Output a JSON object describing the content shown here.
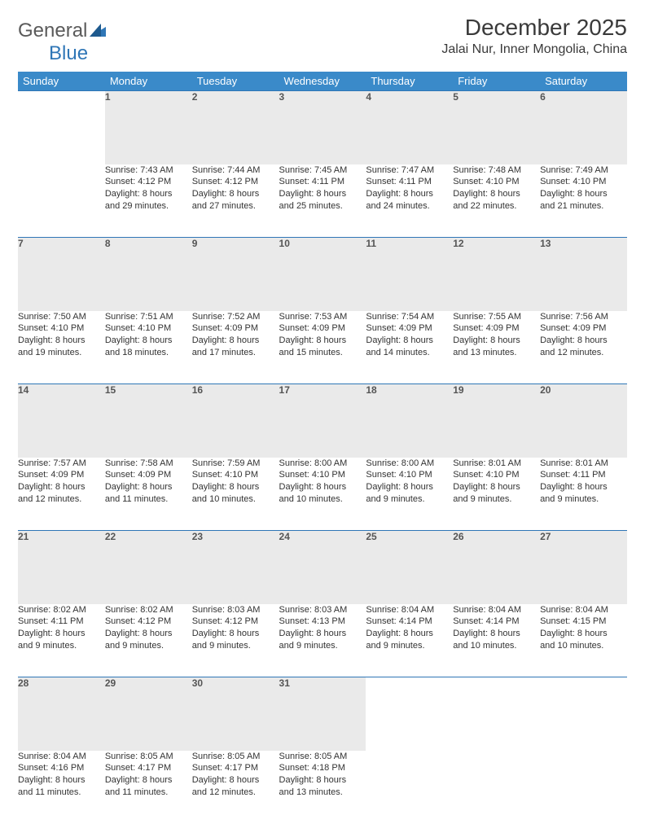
{
  "logo": {
    "text_gray": "General",
    "text_blue": "Blue"
  },
  "title": "December 2025",
  "location": "Jalai Nur, Inner Mongolia, China",
  "colors": {
    "header_bg": "#3a8ac9",
    "header_text": "#ffffff",
    "daynum_bg": "#eaeaea",
    "rule": "#2f76b6",
    "body_text": "#333333",
    "logo_gray": "#5a5a5a",
    "logo_blue": "#2f76b6"
  },
  "weekdays": [
    "Sunday",
    "Monday",
    "Tuesday",
    "Wednesday",
    "Thursday",
    "Friday",
    "Saturday"
  ],
  "weeks": [
    [
      null,
      {
        "n": "1",
        "sr": "Sunrise: 7:43 AM",
        "ss": "Sunset: 4:12 PM",
        "d1": "Daylight: 8 hours",
        "d2": "and 29 minutes."
      },
      {
        "n": "2",
        "sr": "Sunrise: 7:44 AM",
        "ss": "Sunset: 4:12 PM",
        "d1": "Daylight: 8 hours",
        "d2": "and 27 minutes."
      },
      {
        "n": "3",
        "sr": "Sunrise: 7:45 AM",
        "ss": "Sunset: 4:11 PM",
        "d1": "Daylight: 8 hours",
        "d2": "and 25 minutes."
      },
      {
        "n": "4",
        "sr": "Sunrise: 7:47 AM",
        "ss": "Sunset: 4:11 PM",
        "d1": "Daylight: 8 hours",
        "d2": "and 24 minutes."
      },
      {
        "n": "5",
        "sr": "Sunrise: 7:48 AM",
        "ss": "Sunset: 4:10 PM",
        "d1": "Daylight: 8 hours",
        "d2": "and 22 minutes."
      },
      {
        "n": "6",
        "sr": "Sunrise: 7:49 AM",
        "ss": "Sunset: 4:10 PM",
        "d1": "Daylight: 8 hours",
        "d2": "and 21 minutes."
      }
    ],
    [
      {
        "n": "7",
        "sr": "Sunrise: 7:50 AM",
        "ss": "Sunset: 4:10 PM",
        "d1": "Daylight: 8 hours",
        "d2": "and 19 minutes."
      },
      {
        "n": "8",
        "sr": "Sunrise: 7:51 AM",
        "ss": "Sunset: 4:10 PM",
        "d1": "Daylight: 8 hours",
        "d2": "and 18 minutes."
      },
      {
        "n": "9",
        "sr": "Sunrise: 7:52 AM",
        "ss": "Sunset: 4:09 PM",
        "d1": "Daylight: 8 hours",
        "d2": "and 17 minutes."
      },
      {
        "n": "10",
        "sr": "Sunrise: 7:53 AM",
        "ss": "Sunset: 4:09 PM",
        "d1": "Daylight: 8 hours",
        "d2": "and 15 minutes."
      },
      {
        "n": "11",
        "sr": "Sunrise: 7:54 AM",
        "ss": "Sunset: 4:09 PM",
        "d1": "Daylight: 8 hours",
        "d2": "and 14 minutes."
      },
      {
        "n": "12",
        "sr": "Sunrise: 7:55 AM",
        "ss": "Sunset: 4:09 PM",
        "d1": "Daylight: 8 hours",
        "d2": "and 13 minutes."
      },
      {
        "n": "13",
        "sr": "Sunrise: 7:56 AM",
        "ss": "Sunset: 4:09 PM",
        "d1": "Daylight: 8 hours",
        "d2": "and 12 minutes."
      }
    ],
    [
      {
        "n": "14",
        "sr": "Sunrise: 7:57 AM",
        "ss": "Sunset: 4:09 PM",
        "d1": "Daylight: 8 hours",
        "d2": "and 12 minutes."
      },
      {
        "n": "15",
        "sr": "Sunrise: 7:58 AM",
        "ss": "Sunset: 4:09 PM",
        "d1": "Daylight: 8 hours",
        "d2": "and 11 minutes."
      },
      {
        "n": "16",
        "sr": "Sunrise: 7:59 AM",
        "ss": "Sunset: 4:10 PM",
        "d1": "Daylight: 8 hours",
        "d2": "and 10 minutes."
      },
      {
        "n": "17",
        "sr": "Sunrise: 8:00 AM",
        "ss": "Sunset: 4:10 PM",
        "d1": "Daylight: 8 hours",
        "d2": "and 10 minutes."
      },
      {
        "n": "18",
        "sr": "Sunrise: 8:00 AM",
        "ss": "Sunset: 4:10 PM",
        "d1": "Daylight: 8 hours",
        "d2": "and 9 minutes."
      },
      {
        "n": "19",
        "sr": "Sunrise: 8:01 AM",
        "ss": "Sunset: 4:10 PM",
        "d1": "Daylight: 8 hours",
        "d2": "and 9 minutes."
      },
      {
        "n": "20",
        "sr": "Sunrise: 8:01 AM",
        "ss": "Sunset: 4:11 PM",
        "d1": "Daylight: 8 hours",
        "d2": "and 9 minutes."
      }
    ],
    [
      {
        "n": "21",
        "sr": "Sunrise: 8:02 AM",
        "ss": "Sunset: 4:11 PM",
        "d1": "Daylight: 8 hours",
        "d2": "and 9 minutes."
      },
      {
        "n": "22",
        "sr": "Sunrise: 8:02 AM",
        "ss": "Sunset: 4:12 PM",
        "d1": "Daylight: 8 hours",
        "d2": "and 9 minutes."
      },
      {
        "n": "23",
        "sr": "Sunrise: 8:03 AM",
        "ss": "Sunset: 4:12 PM",
        "d1": "Daylight: 8 hours",
        "d2": "and 9 minutes."
      },
      {
        "n": "24",
        "sr": "Sunrise: 8:03 AM",
        "ss": "Sunset: 4:13 PM",
        "d1": "Daylight: 8 hours",
        "d2": "and 9 minutes."
      },
      {
        "n": "25",
        "sr": "Sunrise: 8:04 AM",
        "ss": "Sunset: 4:14 PM",
        "d1": "Daylight: 8 hours",
        "d2": "and 9 minutes."
      },
      {
        "n": "26",
        "sr": "Sunrise: 8:04 AM",
        "ss": "Sunset: 4:14 PM",
        "d1": "Daylight: 8 hours",
        "d2": "and 10 minutes."
      },
      {
        "n": "27",
        "sr": "Sunrise: 8:04 AM",
        "ss": "Sunset: 4:15 PM",
        "d1": "Daylight: 8 hours",
        "d2": "and 10 minutes."
      }
    ],
    [
      {
        "n": "28",
        "sr": "Sunrise: 8:04 AM",
        "ss": "Sunset: 4:16 PM",
        "d1": "Daylight: 8 hours",
        "d2": "and 11 minutes."
      },
      {
        "n": "29",
        "sr": "Sunrise: 8:05 AM",
        "ss": "Sunset: 4:17 PM",
        "d1": "Daylight: 8 hours",
        "d2": "and 11 minutes."
      },
      {
        "n": "30",
        "sr": "Sunrise: 8:05 AM",
        "ss": "Sunset: 4:17 PM",
        "d1": "Daylight: 8 hours",
        "d2": "and 12 minutes."
      },
      {
        "n": "31",
        "sr": "Sunrise: 8:05 AM",
        "ss": "Sunset: 4:18 PM",
        "d1": "Daylight: 8 hours",
        "d2": "and 13 minutes."
      },
      null,
      null,
      null
    ]
  ]
}
